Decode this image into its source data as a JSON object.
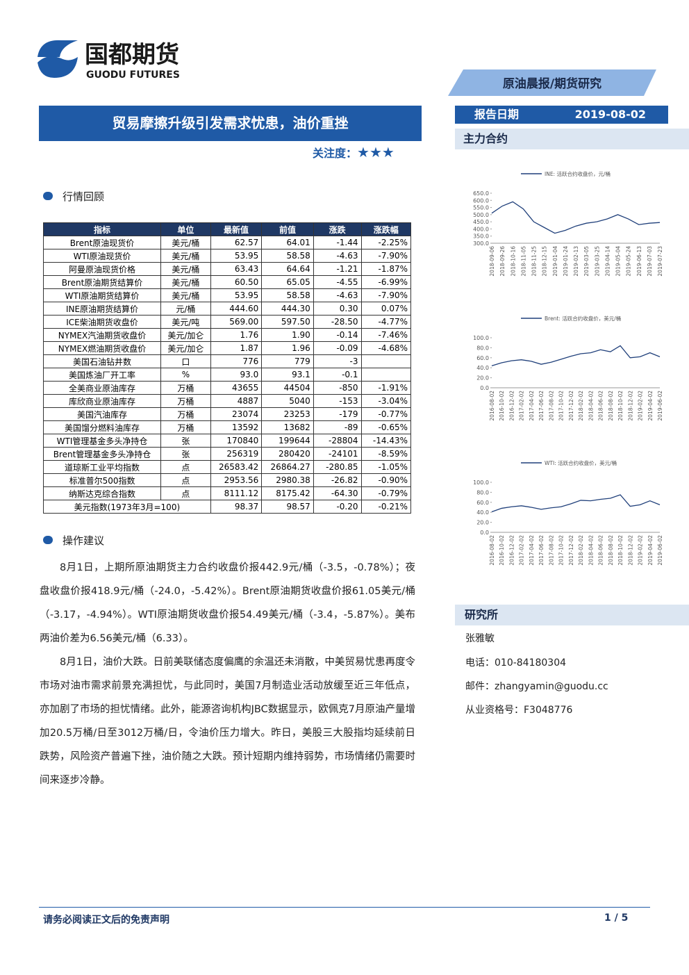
{
  "header": {
    "logo_cn": "国都期货",
    "logo_en": "GUODU FUTURES",
    "report_type": "原油晨报/期货研究",
    "date_label": "报告日期",
    "date": "2019-08-02",
    "main_contract": "主力合约"
  },
  "title": "贸易摩擦升级引发需求忧患，油价重挫",
  "attention": {
    "label": "关注度：",
    "stars": "★★★"
  },
  "sections": {
    "review": "行情回顾",
    "advice": "操作建议",
    "institute": "研究所"
  },
  "table": {
    "headers": [
      "指标",
      "单位",
      "最新值",
      "前值",
      "涨跌",
      "涨跌幅"
    ],
    "rows": [
      [
        "Brent原油现货价",
        "美元/桶",
        "62.57",
        "64.01",
        "-1.44",
        "-2.25%"
      ],
      [
        "WTI原油现货价",
        "美元/桶",
        "53.95",
        "58.58",
        "-4.63",
        "-7.90%"
      ],
      [
        "阿曼原油现货价格",
        "美元/桶",
        "63.43",
        "64.64",
        "-1.21",
        "-1.87%"
      ],
      [
        "Brent原油期货结算价",
        "美元/桶",
        "60.50",
        "65.05",
        "-4.55",
        "-6.99%"
      ],
      [
        "WTI原油期货结算价",
        "美元/桶",
        "53.95",
        "58.58",
        "-4.63",
        "-7.90%"
      ],
      [
        "INE原油期货结算价",
        "元/桶",
        "444.60",
        "444.30",
        "0.30",
        "0.07%"
      ],
      [
        "ICE柴油期货收盘价",
        "美元/吨",
        "569.00",
        "597.50",
        "-28.50",
        "-4.77%"
      ],
      [
        "NYMEX汽油期货收盘价",
        "美元/加仑",
        "1.76",
        "1.90",
        "-0.14",
        "-7.46%"
      ],
      [
        "NYMEX燃油期货收盘价",
        "美元/加仑",
        "1.87",
        "1.96",
        "-0.09",
        "-4.68%"
      ],
      [
        "美国石油钻井数",
        "口",
        "776",
        "779",
        "-3"
      ],
      [
        "美国炼油厂开工率",
        "%",
        "93.0",
        "93.1",
        "-0.1"
      ],
      [
        "全美商业原油库存",
        "万桶",
        "43655",
        "44504",
        "-850",
        "-1.91%"
      ],
      [
        "库欣商业原油库存",
        "万桶",
        "4887",
        "5040",
        "-153",
        "-3.04%"
      ],
      [
        "美国汽油库存",
        "万桶",
        "23074",
        "23253",
        "-179",
        "-0.77%"
      ],
      [
        "美国馏分燃料油库存",
        "万桶",
        "13592",
        "13682",
        "-89",
        "-0.65%"
      ],
      [
        "WTI管理基金多头净持仓",
        "张",
        "170840",
        "199644",
        "-28804",
        "-14.43%"
      ],
      [
        "Brent管理基金多头净持仓",
        "张",
        "256319",
        "280420",
        "-24101",
        "-8.59%"
      ],
      [
        "道琼斯工业平均指数",
        "点",
        "26583.42",
        "26864.27",
        "-280.85",
        "-1.05%"
      ],
      [
        "标准普尔500指数",
        "点",
        "2953.56",
        "2980.38",
        "-26.82",
        "-0.90%"
      ],
      [
        "纳斯达克综合指数",
        "点",
        "8111.12",
        "8175.42",
        "-64.30",
        "-0.79%"
      ]
    ],
    "last_row": [
      "美元指数(1973年3月=100)",
      "98.37",
      "98.57",
      "-0.20",
      "-0.21%"
    ]
  },
  "paragraphs": [
    "8月1日，上期所原油期货主力合约收盘价报442.9元/桶（-3.5，-0.78%）；夜盘收盘价报418.9元/桶（-24.0，-5.42%）。Brent原油期货收盘价报61.05美元/桶（-3.17，-4.94%）。WTI原油期货收盘价报54.49美元/桶（-3.4，-5.87%）。美布两油价差为6.56美元/桶（6.33）。",
    "8月1日，油价大跌。日前美联储态度偏鹰的余温还未消散，中美贸易忧患再度令市场对油市需求前景充满担忧，与此同时，美国7月制造业活动放缓至近三年低点，亦加剧了市场的担忧情绪。此外，能源咨询机构JBC数据显示，欧佩克7月原油产量增加20.5万桶/日至3012万桶/日，令油价压力增大。昨日，美股三大股指均延续前日跌势，风险资产普遍下挫，油价随之大跌。预计短期内维持弱势，市场情绪仍需要时间来逐步冷静。"
  ],
  "contacts": [
    "张雅敏",
    "电话：010-84180304",
    "邮件：zhangyamin@guodu.cc",
    "从业资格号：F3048776"
  ],
  "footer": {
    "disclaimer": "请务必阅读正文后的免责声明",
    "page": "1 / 5"
  },
  "chart_data": [
    {
      "type": "line",
      "categories": [
        "2018-09-06",
        "2018-09-26",
        "2018-10-16",
        "2018-11-05",
        "2018-11-25",
        "2018-12-15",
        "2019-01-04",
        "2019-01-24",
        "2019-02-13",
        "2019-03-05",
        "2019-03-25",
        "2019-04-14",
        "2019-05-04",
        "2019-05-24",
        "2019-06-13",
        "2019-07-03",
        "2019-07-23"
      ],
      "series": [
        {
          "name": "INE: 活跃合约收盘价，元/桶",
          "color": "#1f3f7a",
          "values": [
            510,
            560,
            590,
            540,
            450,
            410,
            370,
            390,
            420,
            440,
            450,
            470,
            500,
            470,
            430,
            440,
            445
          ]
        }
      ],
      "ylim": [
        300,
        650
      ],
      "yticks": [
        {
          "value": 300,
          "label": "300.0"
        },
        {
          "value": 350,
          "label": "350.0"
        },
        {
          "value": 400,
          "label": "400.0"
        },
        {
          "value": 450,
          "label": "450.0"
        },
        {
          "value": 500,
          "label": "500.0"
        },
        {
          "value": 550,
          "label": "550.0"
        },
        {
          "value": 600,
          "label": "600.0"
        },
        {
          "value": 650,
          "label": "650.0"
        }
      ]
    },
    {
      "type": "line",
      "categories": [
        "2016-08-02",
        "2016-10-02",
        "2016-12-02",
        "2017-02-02",
        "2017-04-02",
        "2017-06-02",
        "2017-08-02",
        "2017-10-02",
        "2017-12-02",
        "2018-02-02",
        "2018-04-02",
        "2018-06-02",
        "2018-08-02",
        "2018-10-02",
        "2018-12-02",
        "2019-02-02",
        "2019-04-02",
        "2019-06-02"
      ],
      "series": [
        {
          "name": "Brent: 活跃合约收盘价，美元/桶",
          "color": "#1f3f7a",
          "values": [
            44,
            50,
            54,
            56,
            53,
            47,
            51,
            57,
            63,
            68,
            70,
            76,
            72,
            84,
            60,
            62,
            70,
            62
          ]
        }
      ],
      "ylim": [
        0,
        100
      ],
      "yticks": [
        {
          "value": 0,
          "label": "0.0"
        },
        {
          "value": 20,
          "label": "20.0"
        },
        {
          "value": 40,
          "label": "40.0"
        },
        {
          "value": 60,
          "label": "60.0"
        },
        {
          "value": 80,
          "label": "80.0"
        },
        {
          "value": 100,
          "label": "100.0"
        }
      ]
    },
    {
      "type": "line",
      "categories": [
        "2016-08-02",
        "2016-10-02",
        "2016-12-02",
        "2017-02-02",
        "2017-04-02",
        "2017-06-02",
        "2017-08-02",
        "2017-10-02",
        "2017-12-02",
        "2018-02-02",
        "2018-04-02",
        "2018-06-02",
        "2018-08-02",
        "2018-10-02",
        "2018-12-02",
        "2019-02-02",
        "2019-04-02",
        "2019-06-02"
      ],
      "series": [
        {
          "name": "WTI: 活跃合约收盘价，美元/桶",
          "color": "#1f3f7a",
          "values": [
            41,
            48,
            51,
            53,
            50,
            46,
            49,
            51,
            57,
            64,
            63,
            66,
            68,
            75,
            52,
            55,
            63,
            55
          ]
        }
      ],
      "ylim": [
        0,
        100
      ],
      "yticks": [
        {
          "value": 0,
          "label": "0.0"
        },
        {
          "value": 20,
          "label": "20.0"
        },
        {
          "value": 40,
          "label": "40.0"
        },
        {
          "value": 60,
          "label": "60.0"
        },
        {
          "value": 80,
          "label": "80.0"
        },
        {
          "value": 100,
          "label": "100.0"
        }
      ]
    }
  ]
}
